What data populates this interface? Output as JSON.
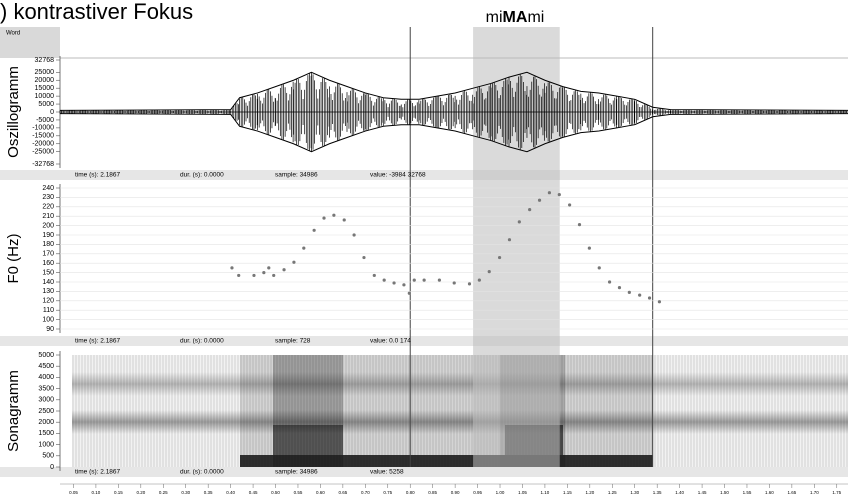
{
  "title": ") kontrastiver Fokus",
  "annotation": [
    "mi",
    "MA",
    "mi"
  ],
  "tier_label": "Word",
  "time_axis": {
    "xlim": [
      0.02,
      1.775
    ],
    "xticks": [
      0.05,
      {
        "value": 0.1,
        "label": "0.10"
      },
      0.15,
      {
        "value": 0.2,
        "label": "0.20"
      },
      0.25,
      {
        "value": 0.3,
        "label": "0.30"
      },
      0.35,
      {
        "value": 0.4,
        "label": "0.40"
      },
      0.45,
      {
        "value": 0.5,
        "label": "0.50"
      },
      0.55,
      {
        "value": 0.6,
        "label": "0.60"
      },
      0.65,
      {
        "value": 0.7,
        "label": "0.70"
      },
      0.75,
      {
        "value": 0.8,
        "label": "0.80"
      },
      0.85,
      {
        "value": 0.9,
        "label": "0.90"
      },
      0.95,
      {
        "value": 1,
        "label": "1.00"
      },
      1.05,
      {
        "value": 1.1,
        "label": "1.10"
      },
      1.15,
      {
        "value": 1.2,
        "label": "1.20"
      },
      1.25,
      {
        "value": 1.3,
        "label": "1.30"
      },
      1.35,
      {
        "value": 1.4,
        "label": "1.40"
      },
      1.45,
      {
        "value": 1.5,
        "label": "1.50"
      },
      1.55,
      {
        "value": 1.6,
        "label": "1.60"
      },
      1.65,
      {
        "value": 1.7,
        "label": "1.70"
      },
      1.75
    ],
    "cursors": [
      0.8,
      1.34
    ],
    "selection": [
      0.94,
      1.133
    ]
  },
  "chart_data": [
    {
      "type": "waveform",
      "ylabel": "Oszillogramm",
      "color": "#000000",
      "x": [
        0.02,
        0.4,
        0.42,
        0.46,
        0.5,
        0.54,
        0.58,
        0.62,
        0.66,
        0.7,
        0.74,
        0.78,
        0.82,
        0.86,
        0.9,
        0.94,
        0.98,
        1.02,
        1.06,
        1.1,
        1.14,
        1.18,
        1.22,
        1.26,
        1.3,
        1.34,
        1.38,
        1.775
      ],
      "values": [
        1000,
        1500,
        9000,
        12000,
        16000,
        20000,
        25000,
        20000,
        16000,
        12000,
        9000,
        8000,
        8000,
        10000,
        12000,
        15000,
        18000,
        22000,
        25000,
        20000,
        16000,
        13000,
        12000,
        10000,
        8000,
        3000,
        1500,
        1000
      ],
      "ylim": [
        -32768,
        32768
      ],
      "yticks": [
        32768,
        25000,
        20000,
        15000,
        10000,
        5000,
        0,
        -5000,
        -10000,
        -15000,
        -20000,
        -25000,
        -32768
      ],
      "status": [
        "time (s): 2.1867",
        "dur. (s): 0.0000",
        "sample: 34986",
        "value: -3984 32768"
      ]
    },
    {
      "type": "scatter",
      "ylabel": "F0 (Hz)",
      "color": "#777777",
      "grid": true,
      "x": [
        0.403,
        0.418,
        0.452,
        0.474,
        0.485,
        0.496,
        0.519,
        0.541,
        0.563,
        0.586,
        0.608,
        0.63,
        0.653,
        0.675,
        0.697,
        0.72,
        0.742,
        0.764,
        0.786,
        0.798,
        0.809,
        0.831,
        0.865,
        0.898,
        0.932,
        0.954,
        0.976,
        0.999,
        1.021,
        1.043,
        1.066,
        1.088,
        1.11,
        1.132,
        1.155,
        1.177,
        1.199,
        1.221,
        1.244,
        1.266,
        1.288,
        1.311,
        1.333,
        1.355
      ],
      "values": [
        155,
        147,
        147,
        150,
        155,
        147,
        153,
        161,
        176,
        195,
        208,
        211,
        206,
        190,
        166,
        147,
        142,
        139,
        137,
        128,
        142,
        142,
        142,
        139,
        138,
        142,
        151,
        166,
        185,
        204,
        217,
        227,
        235,
        233,
        222,
        201,
        176,
        155,
        140,
        134,
        129,
        126,
        123,
        119
      ],
      "ylim": [
        90,
        240
      ],
      "yticks": [
        90,
        100,
        110,
        120,
        130,
        140,
        150,
        160,
        170,
        180,
        190,
        200,
        210,
        220,
        230,
        240
      ],
      "status": [
        "time (s): 2.1867",
        "dur. (s): 0.0000",
        "sample: 728",
        "value: 0.0 174"
      ]
    },
    {
      "type": "spectrogram",
      "ylabel": "Sonagramm",
      "ylim": [
        0,
        5000
      ],
      "yticks": [
        0,
        500,
        1000,
        1500,
        2000,
        2500,
        3000,
        3500,
        4000,
        4500,
        5000
      ],
      "status": [
        "time (s): 2.1867",
        "dur. (s): 0.0000",
        "sample: 34986",
        "value: 5258"
      ]
    }
  ]
}
